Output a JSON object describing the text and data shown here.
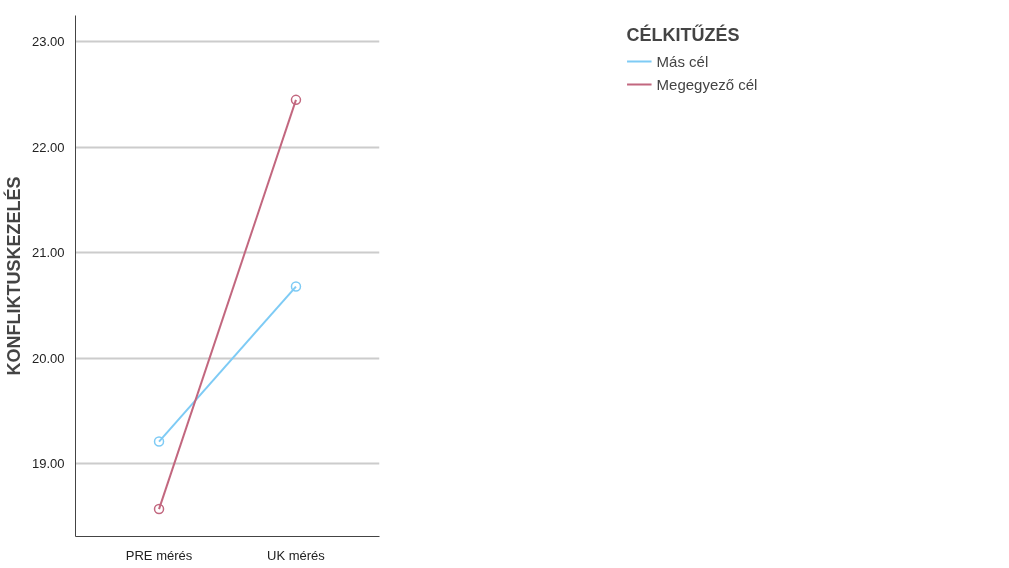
{
  "chart_data": {
    "type": "line",
    "ylabel": "KONFLIKTUSKEZELÉS",
    "legend_title": "CÉLKITŰZÉS",
    "categories": [
      "PRE mérés",
      "UK mérés"
    ],
    "series": [
      {
        "name": "Más cél",
        "color": "#7ecbf5",
        "values": [
          19.21,
          20.68
        ]
      },
      {
        "name": "Megegyező cél",
        "color": "#c2677f",
        "values": [
          18.57,
          22.45
        ]
      }
    ],
    "ylim": [
      18.31,
      23.25
    ],
    "yticks": [
      {
        "value": 19,
        "label": "19.00"
      },
      {
        "value": 20,
        "label": "20.00"
      },
      {
        "value": 21,
        "label": "21.00"
      },
      {
        "value": 22,
        "label": "22.00"
      },
      {
        "value": 23,
        "label": "23.00"
      }
    ],
    "grid": "y",
    "legend": "right",
    "marker": "circle",
    "line_style": "solid"
  }
}
